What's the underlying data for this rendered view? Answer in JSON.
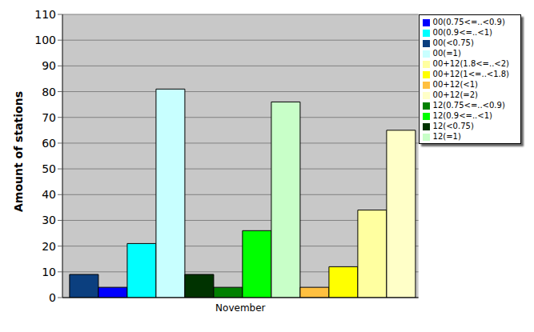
{
  "chart_data": {
    "type": "bar",
    "y_label": "Amount of stations",
    "categories": [
      "November"
    ],
    "series": [
      {
        "name": "00(<0.75)",
        "color": "#0b3f7f",
        "values": [
          9
        ]
      },
      {
        "name": "00(0.75<=..<0.9)",
        "color": "#0000ff",
        "values": [
          4
        ]
      },
      {
        "name": "00(0.9<=..<1)",
        "color": "#00ffff",
        "values": [
          21
        ]
      },
      {
        "name": "00(=1)",
        "color": "#c8ffff",
        "values": [
          81
        ]
      },
      {
        "name": "12(<0.75)",
        "color": "#003300",
        "values": [
          9
        ]
      },
      {
        "name": "12(0.75<=..<0.9)",
        "color": "#008000",
        "values": [
          4
        ]
      },
      {
        "name": "12(0.9<=..<1)",
        "color": "#00ff00",
        "values": [
          26
        ]
      },
      {
        "name": "12(=1)",
        "color": "#c8ffc8",
        "values": [
          76
        ]
      },
      {
        "name": "00+12(<1)",
        "color": "#ffc040",
        "values": [
          4
        ]
      },
      {
        "name": "00+12(1<=..<1.8)",
        "color": "#ffff00",
        "values": [
          12
        ]
      },
      {
        "name": "00+12(1.8<=..<2)",
        "color": "#ffffa0",
        "values": [
          34
        ]
      },
      {
        "name": "00+12(=2)",
        "color": "#ffffc8",
        "values": [
          65
        ]
      }
    ],
    "ylim": [
      0,
      110
    ],
    "yticks": [
      0,
      10,
      20,
      30,
      40,
      50,
      60,
      70,
      80,
      90,
      100,
      110
    ],
    "grid": true,
    "legend": "top-right"
  }
}
